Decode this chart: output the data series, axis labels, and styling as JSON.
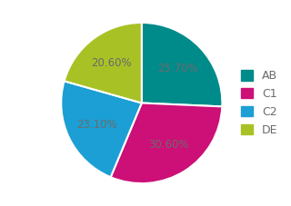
{
  "labels": [
    "AB",
    "C1",
    "C2",
    "DE"
  ],
  "values": [
    25.7,
    30.6,
    23.1,
    20.6
  ],
  "colors": [
    "#008B8B",
    "#CC1077",
    "#1B9FD4",
    "#A8C226"
  ],
  "pct_labels": [
    "25.70%",
    "30.60%",
    "23.10%",
    "20.60%"
  ],
  "pct_label_color": "#6B6B6B",
  "pct_fontsize": 8.5,
  "legend_fontsize": 9,
  "startangle": 90,
  "counterclock": false,
  "label_r": 0.62,
  "background_color": "#ffffff",
  "edge_color": "#ffffff",
  "edge_linewidth": 1.5
}
